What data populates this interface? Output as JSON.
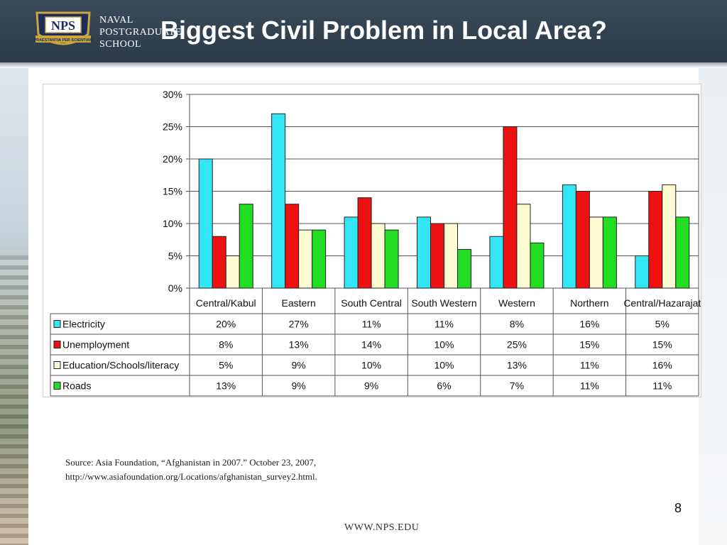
{
  "header": {
    "title": "Biggest Civil Problem in Local Area?",
    "logo_text": "NPS",
    "logo_motto": "PRAESTANTIA PER SCIENTIAM",
    "school_name": [
      "NAVAL",
      "POSTGRADUATE",
      "SCHOOL"
    ]
  },
  "colors": {
    "header_bg": "#34424f",
    "electricity": "#33e6f5",
    "unemployment": "#ee1111",
    "education": "#fdfbd2",
    "roads": "#22dd22"
  },
  "chart_data": {
    "type": "bar",
    "categories": [
      "Central/Kabul",
      "Eastern",
      "South Central",
      "South Western",
      "Western",
      "Northern",
      "Central/Hazarajat"
    ],
    "series": [
      {
        "name": "Electricity",
        "values": [
          20,
          27,
          11,
          11,
          8,
          16,
          5
        ],
        "color": "#33e6f5"
      },
      {
        "name": "Unemployment",
        "values": [
          8,
          13,
          14,
          10,
          25,
          15,
          15
        ],
        "color": "#ee1111"
      },
      {
        "name": "Education/Schools/literacy",
        "values": [
          5,
          9,
          10,
          10,
          13,
          11,
          16
        ],
        "color": "#fdfbd2"
      },
      {
        "name": "Roads",
        "values": [
          13,
          9,
          9,
          6,
          7,
          11,
          11
        ],
        "color": "#22dd22"
      }
    ],
    "y_ticks": [
      "0%",
      "5%",
      "10%",
      "15%",
      "20%",
      "25%",
      "30%"
    ],
    "ylim": [
      0,
      30
    ],
    "grid": true,
    "legend": "data-table"
  },
  "source": {
    "line1": "Source: Asia Foundation, “Afghanistan in 2007.” October 23, 2007,",
    "line2": "http://www.asiafoundation.org/Locations/afghanistan_survey2.html."
  },
  "page_number": "8",
  "footer_url": "WWW.NPS.EDU"
}
